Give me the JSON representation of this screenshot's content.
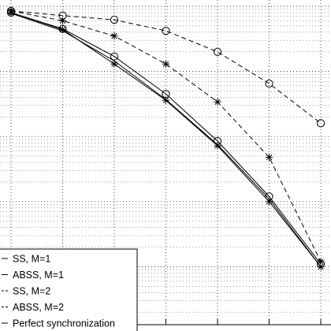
{
  "chart_data": {
    "type": "line",
    "grid": true,
    "x_scale": "linear",
    "y_scale": "log",
    "xlim": [
      0,
      6
    ],
    "ylim": [
      1e-05,
      1
    ],
    "x": [
      0,
      1,
      2,
      3,
      4,
      5,
      6
    ],
    "series": [
      {
        "name": "SS, M=1",
        "marker": "circle",
        "line": "solid",
        "values": [
          0.8,
          0.45,
          0.17,
          0.045,
          0.0085,
          0.0012,
          0.00011
        ]
      },
      {
        "name": "ABSS, M=1",
        "marker": "star",
        "line": "solid",
        "values": [
          0.8,
          0.44,
          0.13,
          0.036,
          0.0072,
          0.001,
          0.0001
        ]
      },
      {
        "name": "SS, M=2",
        "marker": "circle",
        "line": "dashed",
        "values": [
          0.85,
          0.72,
          0.62,
          0.42,
          0.2,
          0.065,
          0.016
        ]
      },
      {
        "name": "ABSS, M=2",
        "marker": "star",
        "line": "dashed",
        "values": [
          0.85,
          0.6,
          0.35,
          0.13,
          0.034,
          0.0048,
          0.00012
        ]
      },
      {
        "name": "Perfect synchronization",
        "marker": "none",
        "line": "solid",
        "values": [
          0.78,
          0.42,
          0.145,
          0.037,
          0.0075,
          0.0011,
          0.0001
        ]
      }
    ],
    "legend": {
      "placement": "bottom-left",
      "entries": [
        "SS, M=1",
        "ABSS, M=1",
        "SS, M=2",
        "ABSS, M=2",
        "Perfect synchronization"
      ]
    },
    "colors": {
      "line": "#000000",
      "grid": "#000000",
      "background": "#ffffff"
    }
  }
}
